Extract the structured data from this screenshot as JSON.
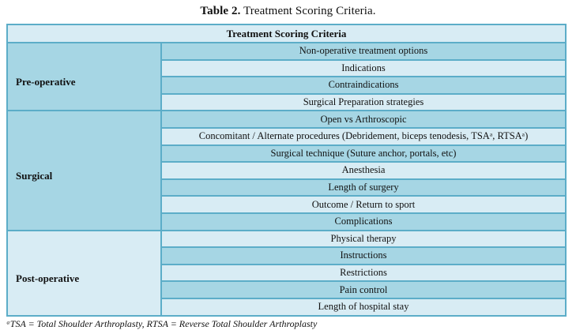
{
  "caption": {
    "label_bold": "Table 2.",
    "label_rest": " Treatment Scoring Criteria."
  },
  "table": {
    "header": "Treatment Scoring Criteria",
    "sections": [
      {
        "label": "Pre-operative",
        "rows": [
          "Non-operative treatment options",
          "Indications",
          "Contraindications",
          "Surgical Preparation strategies"
        ]
      },
      {
        "label": "Surgical",
        "rows": [
          "Open vs Arthroscopic",
          "Concomitant / Alternate procedures (Debridement, biceps tenodesis, TSAᵃ, RTSAᵃ)",
          "Surgical technique (Suture anchor, portals, etc)",
          "Anesthesia",
          "Length of surgery",
          "Outcome / Return to sport",
          "Complications"
        ]
      },
      {
        "label": "Post-operative",
        "rows": [
          "Physical therapy",
          "Instructions",
          "Restrictions",
          "Pain control",
          "Length of hospital stay"
        ]
      }
    ]
  },
  "footnote": "ᵃTSA = Total Shoulder Arthroplasty, RTSA = Reverse Total Shoulder Arthroplasty",
  "colors": {
    "border": "#5cadc8",
    "row_medium": "#a6d6e4",
    "row_light": "#d8ecf4",
    "header_bg": "#d8ecf4",
    "text": "#111111",
    "background": "#ffffff"
  }
}
